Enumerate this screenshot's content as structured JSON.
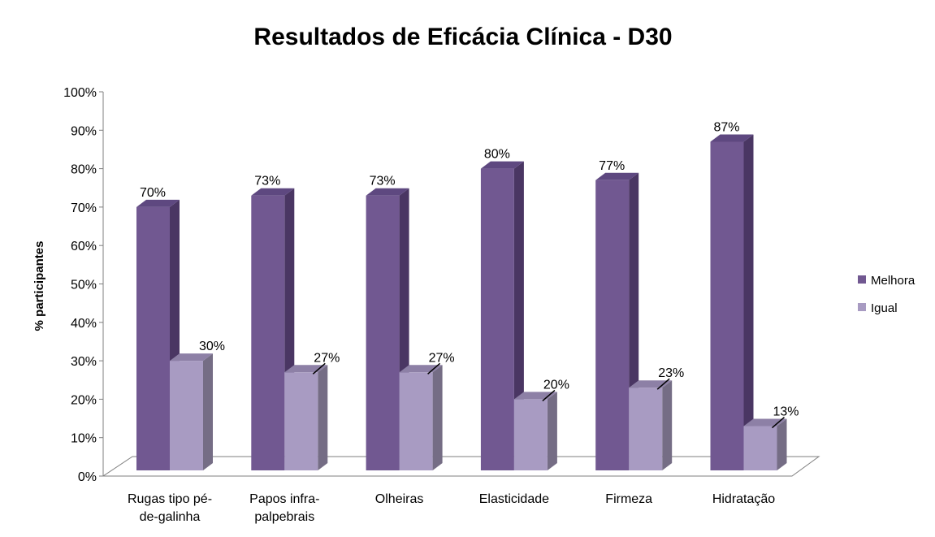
{
  "chart_data": {
    "type": "bar",
    "title": "Resultados de Eficácia Clínica - D30",
    "xlabel": "",
    "ylabel": "% participantes",
    "ylim": [
      0,
      100
    ],
    "y_ticks": [
      "0%",
      "10%",
      "20%",
      "30%",
      "40%",
      "50%",
      "60%",
      "70%",
      "80%",
      "90%",
      "100%"
    ],
    "categories": [
      [
        "Rugas tipo pé-",
        "de-galinha"
      ],
      [
        "Papos infra-",
        "palpebrais"
      ],
      [
        "Olheiras"
      ],
      [
        "Elasticidade"
      ],
      [
        "Firmeza"
      ],
      [
        "Hidratação"
      ]
    ],
    "series": [
      {
        "name": "Melhora",
        "values": [
          70,
          73,
          73,
          80,
          77,
          87
        ],
        "labels": [
          "70%",
          "73%",
          "73%",
          "80%",
          "77%",
          "87%"
        ],
        "color_front": "#715891",
        "color_side": "#4a3663",
        "color_top": "#5e4880"
      },
      {
        "name": "Igual",
        "values": [
          30,
          27,
          27,
          20,
          23,
          13
        ],
        "labels": [
          "30%",
          "27%",
          "27%",
          "20%",
          "23%",
          "13%"
        ],
        "color_front": "#a89bc2",
        "color_side": "#756d85",
        "color_top": "#8d80a6"
      }
    ],
    "legend_position": "right",
    "grid": false
  }
}
